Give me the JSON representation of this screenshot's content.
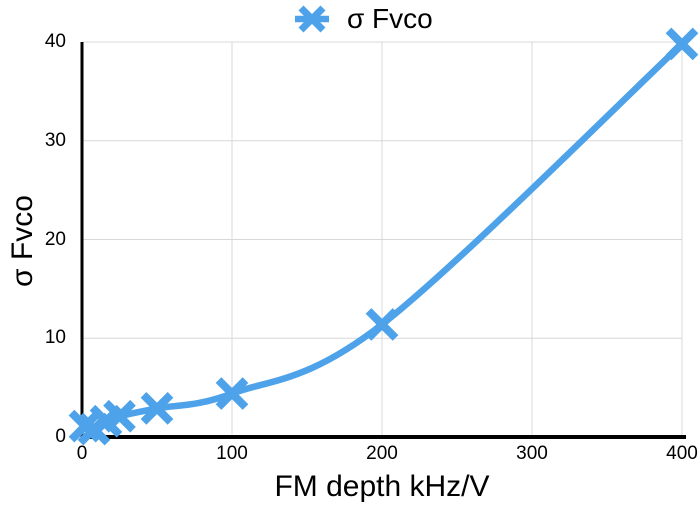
{
  "legend": {
    "label": "σ Fvco"
  },
  "chart_data": {
    "type": "line",
    "title": "",
    "xlabel": "FM depth kHz/V",
    "ylabel": "σ Fvco",
    "series": [
      {
        "name": "σ Fvco",
        "marker": "x",
        "points": [
          [
            2,
            1.1
          ],
          [
            8,
            0.8
          ],
          [
            16,
            1.6
          ],
          [
            25,
            2.1
          ],
          [
            50,
            2.9
          ],
          [
            100,
            4.4
          ],
          [
            200,
            11.4
          ],
          [
            400,
            39.8
          ]
        ]
      }
    ],
    "xlim": [
      0,
      400
    ],
    "ylim": [
      0,
      40
    ],
    "x_ticks": [
      0,
      100,
      200,
      300,
      400
    ],
    "y_ticks": [
      0,
      10,
      20,
      30,
      40
    ],
    "grid": true,
    "legend_position": "top-center",
    "colors": {
      "series": "#4DA2E9",
      "grid": "#D8D8D8",
      "axis": "#000000",
      "text": "#000000"
    }
  }
}
